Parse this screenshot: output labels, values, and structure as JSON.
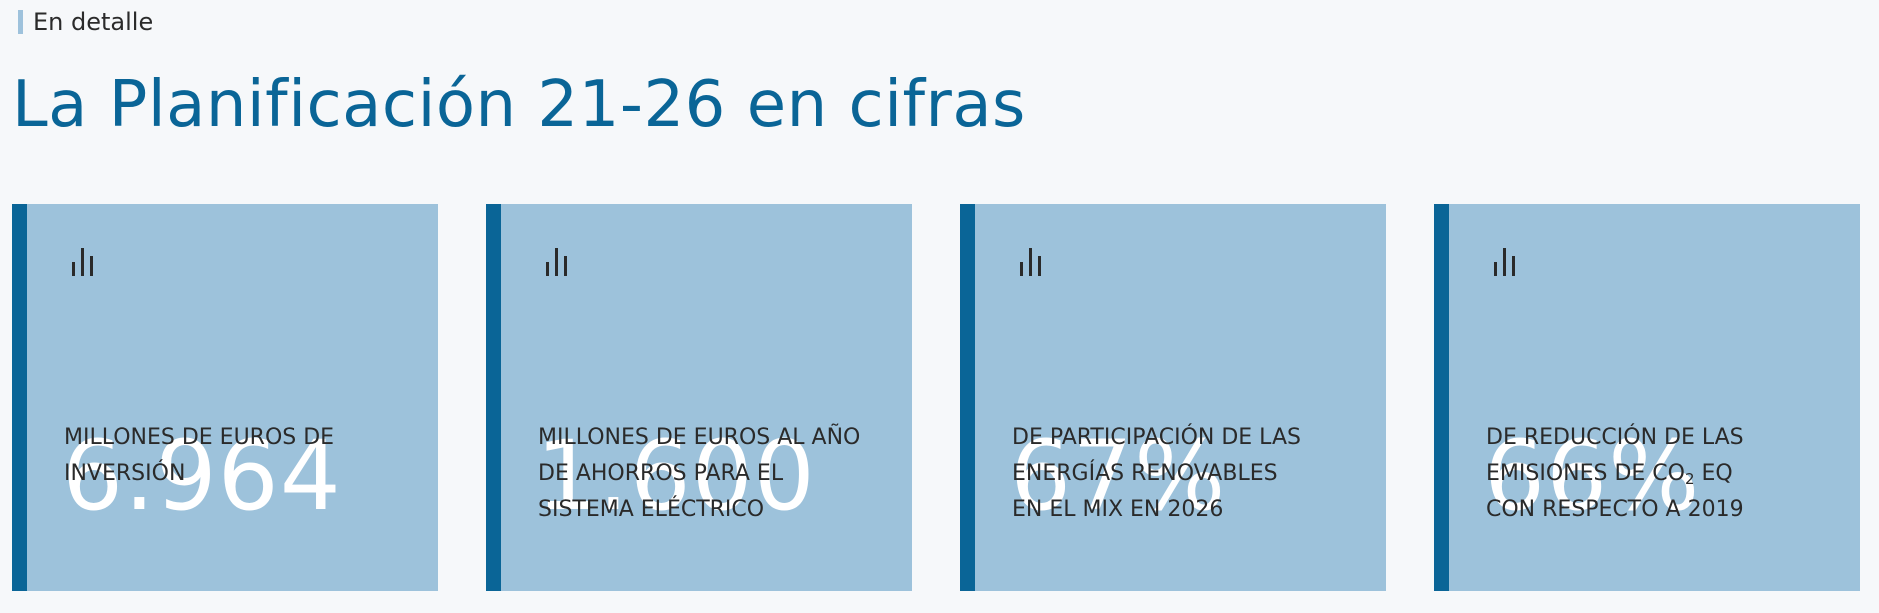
{
  "header": {
    "eyebrow": "En detalle",
    "title": "La Planificación 21-26 en cifras"
  },
  "colors": {
    "background": "#f6f8fa",
    "accent": "#0a6597",
    "card": "#9dc2db",
    "eyebrow_bar": "#9ec2dc"
  },
  "cards": [
    {
      "icon": "bar-chart-icon",
      "value": "6.964",
      "lines": [
        "MILLONES DE EUROS DE",
        "INVERSIÓN"
      ]
    },
    {
      "icon": "bar-chart-icon",
      "value": "1.600",
      "lines": [
        "MILLONES DE EUROS AL AÑO",
        "DE AHORROS PARA EL",
        "SISTEMA ELÉCTRICO"
      ]
    },
    {
      "icon": "bar-chart-icon",
      "value": "67%",
      "lines": [
        "DE PARTICIPACIÓN DE LAS",
        "ENERGÍAS RENOVABLES",
        "EN EL MIX EN 2026"
      ]
    },
    {
      "icon": "bar-chart-icon",
      "value": "66%",
      "lines": [
        "DE REDUCCIÓN DE LAS",
        "EMISIONES DE CO",
        "2",
        " EQ",
        "CON RESPECTO A 2019"
      ]
    }
  ]
}
